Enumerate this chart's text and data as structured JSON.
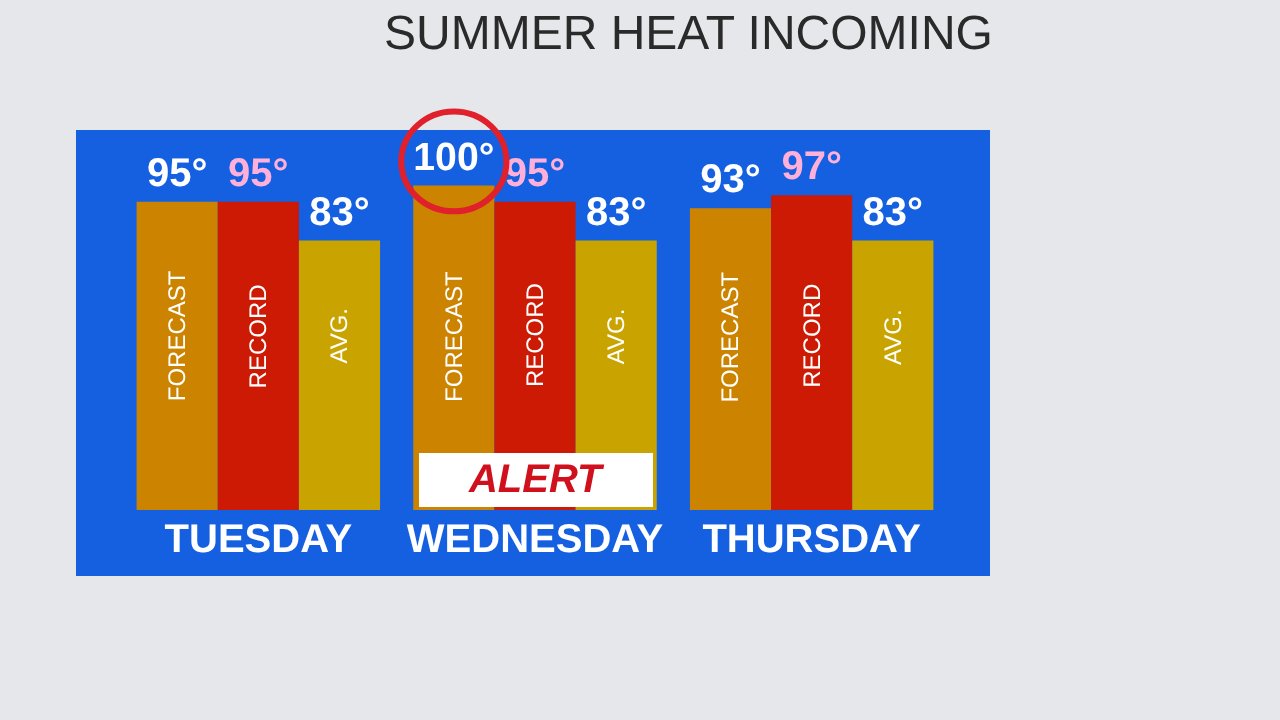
{
  "chart_data": {
    "type": "bar",
    "title": "SUMMER HEAT INCOMING",
    "categories": [
      "TUESDAY",
      "WEDNESDAY",
      "THURSDAY"
    ],
    "series": [
      {
        "name": "FORECAST",
        "color": "#cc8400",
        "values": [
          95,
          100,
          93
        ],
        "value_labels": [
          "95°",
          "100°",
          "93°"
        ]
      },
      {
        "name": "RECORD",
        "color": "#cc1a05",
        "values": [
          95,
          95,
          97
        ],
        "value_labels": [
          "95°",
          "95°",
          "97°"
        ]
      },
      {
        "name": "AVG.",
        "color": "#c9a300",
        "values": [
          83,
          83,
          83
        ],
        "value_labels": [
          "83°",
          "83°",
          "83°"
        ]
      }
    ],
    "tick_labels": "x",
    "legend": false,
    "grid": false,
    "annotations": [
      "ALERT"
    ]
  }
}
